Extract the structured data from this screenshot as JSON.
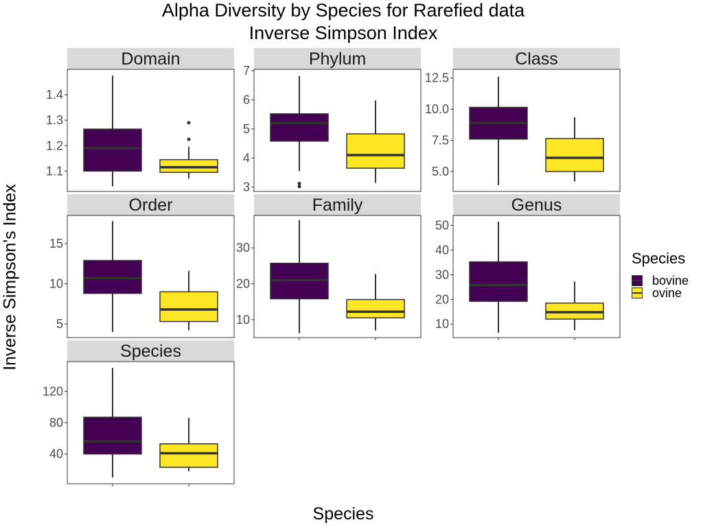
{
  "title_line1": "Alpha Diversity by Species for Rarefied data",
  "title_line2": "Inverse Simpson Index",
  "xlabel": "Species",
  "ylabel": "Inverse Simpson's Index",
  "legend": {
    "title": "Species",
    "items": [
      {
        "label": "bovine",
        "color": "#440154"
      },
      {
        "label": "ovine",
        "color": "#FDE725"
      }
    ]
  },
  "chart_data": {
    "type": "boxplot",
    "facets": [
      {
        "name": "Domain",
        "ylim": [
          1.02,
          1.5
        ],
        "ticks": [
          "1.1",
          "1.2",
          "1.3",
          "1.4"
        ],
        "boxes": [
          {
            "group": "bovine",
            "min": 1.04,
            "q1": 1.1,
            "median": 1.19,
            "q3": 1.265,
            "max": 1.475,
            "outliers": []
          },
          {
            "group": "ovine",
            "min": 1.07,
            "q1": 1.095,
            "median": 1.115,
            "q3": 1.145,
            "max": 1.195,
            "outliers": [
              1.225,
              1.29
            ]
          }
        ]
      },
      {
        "name": "Phylum",
        "ylim": [
          2.85,
          7.05
        ],
        "ticks": [
          "3",
          "4",
          "5",
          "6",
          "7"
        ],
        "boxes": [
          {
            "group": "bovine",
            "min": 3.55,
            "q1": 4.58,
            "median": 5.2,
            "q3": 5.52,
            "max": 6.82,
            "outliers": [
              3.02,
              3.12
            ]
          },
          {
            "group": "ovine",
            "min": 3.15,
            "q1": 3.65,
            "median": 4.1,
            "q3": 4.83,
            "max": 5.98,
            "outliers": []
          }
        ]
      },
      {
        "name": "Class",
        "ylim": [
          3.4,
          13.2
        ],
        "ticks": [
          "5.0",
          "7.5",
          "10.0",
          "12.5"
        ],
        "boxes": [
          {
            "group": "bovine",
            "min": 3.9,
            "q1": 7.6,
            "median": 8.9,
            "q3": 10.15,
            "max": 12.6,
            "outliers": []
          },
          {
            "group": "ovine",
            "min": 4.2,
            "q1": 5.0,
            "median": 6.1,
            "q3": 7.65,
            "max": 9.35,
            "outliers": []
          }
        ]
      },
      {
        "name": "Order",
        "ylim": [
          3.3,
          18.5
        ],
        "ticks": [
          "5",
          "10",
          "15"
        ],
        "boxes": [
          {
            "group": "bovine",
            "min": 4.0,
            "q1": 8.8,
            "median": 10.7,
            "q3": 12.9,
            "max": 17.8,
            "outliers": []
          },
          {
            "group": "ovine",
            "min": 4.2,
            "q1": 5.3,
            "median": 6.8,
            "q3": 9.0,
            "max": 11.6,
            "outliers": []
          }
        ]
      },
      {
        "name": "Family",
        "ylim": [
          5.0,
          39.0
        ],
        "ticks": [
          "10",
          "20",
          "30"
        ],
        "boxes": [
          {
            "group": "bovine",
            "min": 6.2,
            "q1": 15.8,
            "median": 21.0,
            "q3": 25.7,
            "max": 37.7,
            "outliers": []
          },
          {
            "group": "ovine",
            "min": 7.0,
            "q1": 10.5,
            "median": 12.2,
            "q3": 15.6,
            "max": 22.7,
            "outliers": []
          }
        ]
      },
      {
        "name": "Genus",
        "ylim": [
          4.5,
          54.0
        ],
        "ticks": [
          "10",
          "20",
          "30",
          "40",
          "50"
        ],
        "boxes": [
          {
            "group": "bovine",
            "min": 6.5,
            "q1": 19.2,
            "median": 25.8,
            "q3": 35.2,
            "max": 51.5,
            "outliers": []
          },
          {
            "group": "ovine",
            "min": 7.5,
            "q1": 12.0,
            "median": 14.8,
            "q3": 18.5,
            "max": 27.2,
            "outliers": []
          }
        ]
      },
      {
        "name": "Species",
        "ylim": [
          2.0,
          158.0
        ],
        "ticks": [
          "40",
          "80",
          "120"
        ],
        "boxes": [
          {
            "group": "bovine",
            "min": 10,
            "q1": 40,
            "median": 56,
            "q3": 87,
            "max": 150,
            "outliers": []
          },
          {
            "group": "ovine",
            "min": 18,
            "q1": 23,
            "median": 41,
            "q3": 53,
            "max": 86,
            "outliers": []
          }
        ]
      }
    ]
  }
}
